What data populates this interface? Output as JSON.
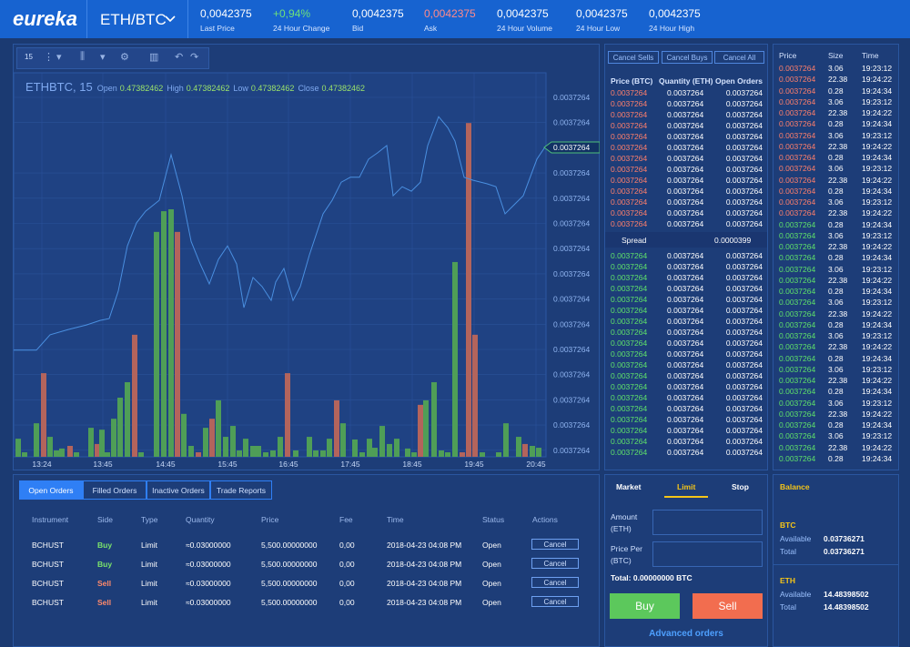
{
  "header": {
    "logo": "eureka",
    "pair": "ETH/BTC",
    "stats": [
      {
        "value": "0,0042375",
        "label": "Last Price"
      },
      {
        "value": "+0,94%",
        "label": "24 Hour Change"
      },
      {
        "value": "0,0042375",
        "label": "Bid"
      },
      {
        "value": "0,0042375",
        "label": "Ask"
      },
      {
        "value": "0,0042375",
        "label": "24 Hour Volume"
      },
      {
        "value": "0,0042375",
        "label": "24 Hour Low"
      },
      {
        "value": "0,0042375",
        "label": "24 Hour High"
      }
    ]
  },
  "chart": {
    "interval": "15",
    "symbol": "ETHBTC, 15",
    "ohlc": [
      {
        "label": "Open",
        "value": "0.47382462"
      },
      {
        "label": "High",
        "value": "0.47382462"
      },
      {
        "label": "Low",
        "value": "0.47382462"
      },
      {
        "label": "Close",
        "value": "0.47382462"
      }
    ],
    "price_labels": [
      "0.0037264",
      "0.0037264",
      "0.0037264",
      "0.0037264",
      "0.0037264",
      "0.0037264",
      "0.0037264",
      "0.0037264",
      "0.0037264",
      "0.0037264",
      "0.0037264",
      "0.0037264",
      "0.0037264",
      "0.0037264"
    ],
    "current_price": "0.0037264",
    "time_labels": [
      "13:24",
      "13:45",
      "14:45",
      "15:45",
      "16:45",
      "17:45",
      "18:45",
      "19:45",
      "20:45"
    ],
    "xlim": [
      0,
      585
    ],
    "ylim": [
      0,
      100
    ],
    "line_color": "#4a8fe0",
    "line_x": [
      0,
      25,
      40,
      60,
      80,
      95,
      105,
      115,
      125,
      135,
      145,
      160,
      173,
      185,
      195,
      205,
      215,
      225,
      235,
      245,
      253,
      263,
      273,
      283,
      288,
      297,
      307,
      315,
      325,
      340,
      350,
      360,
      370,
      380,
      390,
      400,
      410,
      417,
      427,
      437,
      447,
      455,
      467,
      477,
      485,
      495,
      505,
      520,
      530,
      540,
      550,
      560,
      575,
      585
    ],
    "line": [
      28.3,
      28.3,
      32.4,
      33.8,
      35.0,
      36.2,
      36.7,
      44.0,
      56.0,
      62.1,
      65.2,
      68.1,
      80.2,
      69.3,
      57.2,
      51.2,
      45.9,
      52.4,
      56.0,
      51.2,
      39.6,
      47.6,
      45.2,
      41.5,
      46.4,
      50.0,
      41.5,
      45.2,
      53.6,
      64.5,
      68.1,
      72.9,
      74.2,
      74.2,
      79.0,
      80.7,
      82.6,
      69.3,
      71.7,
      70.5,
      72.9,
      82.6,
      90.3,
      87.4,
      83.8,
      74.2,
      73.4,
      72.5,
      71.7,
      64.5,
      66.9,
      69.3,
      79.0,
      82.6
    ],
    "volume_x": [
      5,
      12,
      25,
      33,
      40,
      47,
      53,
      62,
      69,
      85,
      92,
      97,
      103,
      110,
      117,
      125,
      133,
      140,
      157,
      165,
      173,
      180,
      187,
      195,
      203,
      211,
      218,
      225,
      233,
      241,
      248,
      255,
      263,
      269,
      277,
      285,
      293,
      301,
      310,
      325,
      332,
      340,
      347,
      355,
      362,
      375,
      383,
      391,
      397,
      405,
      413,
      421,
      433,
      440,
      447,
      453,
      462,
      470,
      477,
      485,
      493,
      500,
      507,
      515,
      533,
      541,
      555,
      562,
      570,
      577
    ],
    "volume": [
      4.8,
      1.2,
      8.9,
      22.2,
      5.3,
      1.7,
      2.2,
      2.9,
      1.2,
      7.7,
      3.4,
      7.2,
      1.2,
      10.1,
      15.7,
      19.8,
      32.4,
      1.2,
      59.7,
      65.2,
      65.7,
      59.7,
      11.4,
      2.9,
      1.2,
      7.7,
      10.1,
      15.0,
      5.3,
      8.2,
      1.7,
      4.8,
      2.9,
      2.9,
      1.2,
      1.7,
      5.3,
      22.2,
      1.7,
      5.3,
      1.7,
      1.7,
      4.8,
      15.0,
      8.9,
      4.6,
      1.2,
      4.8,
      2.4,
      8.2,
      3.4,
      4.8,
      2.2,
      1.2,
      13.8,
      15.0,
      19.8,
      1.7,
      1.2,
      51.7,
      1.2,
      88.6,
      32.4,
      1.2,
      1.2,
      8.9,
      5.3,
      3.4,
      2.9,
      2.4
    ],
    "volume_colors": [
      "#4f9e57",
      "#4f9e57",
      "#4f9e57",
      "#b3645c",
      "#4f9e57",
      "#4f9e57",
      "#4f9e57",
      "#b3645c",
      "#4f9e57",
      "#4f9e57",
      "#b3645c",
      "#4f9e57",
      "#4f9e57",
      "#4f9e57",
      "#4f9e57",
      "#4f9e57",
      "#b3645c",
      "#4f9e57",
      "#4f9e57",
      "#4f9e57",
      "#4f9e57",
      "#b3645c",
      "#4f9e57",
      "#4f9e57",
      "#b3645c",
      "#4f9e57",
      "#b3645c",
      "#4f9e57",
      "#4f9e57",
      "#4f9e57",
      "#4f9e57",
      "#4f9e57",
      "#4f9e57",
      "#4f9e57",
      "#4f9e57",
      "#4f9e57",
      "#4f9e57",
      "#b3645c",
      "#4f9e57",
      "#4f9e57",
      "#4f9e57",
      "#4f9e57",
      "#4f9e57",
      "#b3645c",
      "#4f9e57",
      "#4f9e57",
      "#4f9e57",
      "#4f9e57",
      "#4f9e57",
      "#4f9e57",
      "#4f9e57",
      "#4f9e57",
      "#4f9e57",
      "#4f9e57",
      "#b3645c",
      "#4f9e57",
      "#4f9e57",
      "#4f9e57",
      "#4f9e57",
      "#4f9e57",
      "#b3645c",
      "#b3645c",
      "#b3645c",
      "#4f9e57",
      "#4f9e57",
      "#4f9e57",
      "#4f9e57",
      "#b3645c",
      "#4f9e57",
      "#4f9e57"
    ]
  },
  "orders": {
    "tabs": [
      "Open Orders",
      "Filled Orders",
      "Inactive Orders",
      "Trade Reports"
    ],
    "columns": [
      "Instrument",
      "Side",
      "Type",
      "Quantity",
      "Price",
      "Fee",
      "Time",
      "Status",
      "Actions"
    ],
    "rows": [
      [
        "BCHUST",
        "Buy",
        "Limit",
        "≈0.03000000",
        "5,500.00000000",
        "0,00",
        "2018-04-23 04:08 PM",
        "Open",
        "Cancel"
      ],
      [
        "BCHUST",
        "Buy",
        "Limit",
        "≈0.03000000",
        "5,500.00000000",
        "0,00",
        "2018-04-23 04:08 PM",
        "Open",
        "Cancel"
      ],
      [
        "BCHUST",
        "Sell",
        "Limit",
        "≈0.03000000",
        "5,500.00000000",
        "0,00",
        "2018-04-23 04:08 PM",
        "Open",
        "Cancel"
      ],
      [
        "BCHUST",
        "Sell",
        "Limit",
        "≈0.03000000",
        "5,500.00000000",
        "0,00",
        "2018-04-23 04:08 PM",
        "Open",
        "Cancel"
      ]
    ]
  },
  "orderbook": {
    "buttons": [
      "Cancel Sells",
      "Cancel Buys",
      "Cancel All"
    ],
    "columns": [
      "Price (BTC)",
      "Quantity (ETH)",
      "Open Orders"
    ],
    "sells": [
      [
        "0.0037264",
        "0.0037264",
        "0.0037264"
      ],
      [
        "0.0037264",
        "0.0037264",
        "0.0037264"
      ],
      [
        "0.0037264",
        "0.0037264",
        "0.0037264"
      ],
      [
        "0.0037264",
        "0.0037264",
        "0.0037264"
      ],
      [
        "0.0037264",
        "0.0037264",
        "0.0037264"
      ],
      [
        "0.0037264",
        "0.0037264",
        "0.0037264"
      ],
      [
        "0.0037264",
        "0.0037264",
        "0.0037264"
      ],
      [
        "0.0037264",
        "0.0037264",
        "0.0037264"
      ],
      [
        "0.0037264",
        "0.0037264",
        "0.0037264"
      ],
      [
        "0.0037264",
        "0.0037264",
        "0.0037264"
      ],
      [
        "0.0037264",
        "0.0037264",
        "0.0037264"
      ],
      [
        "0.0037264",
        "0.0037264",
        "0.0037264"
      ],
      [
        "0.0037264",
        "0.0037264",
        "0.0037264"
      ]
    ],
    "spread": {
      "label": "Spread",
      "value": "0.0000399"
    },
    "buys": [
      [
        "0.0037264",
        "0.0037264",
        "0.0037264"
      ],
      [
        "0.0037264",
        "0.0037264",
        "0.0037264"
      ],
      [
        "0.0037264",
        "0.0037264",
        "0.0037264"
      ],
      [
        "0.0037264",
        "0.0037264",
        "0.0037264"
      ],
      [
        "0.0037264",
        "0.0037264",
        "0.0037264"
      ],
      [
        "0.0037264",
        "0.0037264",
        "0.0037264"
      ],
      [
        "0.0037264",
        "0.0037264",
        "0.0037264"
      ],
      [
        "0.0037264",
        "0.0037264",
        "0.0037264"
      ],
      [
        "0.0037264",
        "0.0037264",
        "0.0037264"
      ],
      [
        "0.0037264",
        "0.0037264",
        "0.0037264"
      ],
      [
        "0.0037264",
        "0.0037264",
        "0.0037264"
      ],
      [
        "0.0037264",
        "0.0037264",
        "0.0037264"
      ],
      [
        "0.0037264",
        "0.0037264",
        "0.0037264"
      ],
      [
        "0.0037264",
        "0.0037264",
        "0.0037264"
      ],
      [
        "0.0037264",
        "0.0037264",
        "0.0037264"
      ],
      [
        "0.0037264",
        "0.0037264",
        "0.0037264"
      ],
      [
        "0.0037264",
        "0.0037264",
        "0.0037264"
      ],
      [
        "0.0037264",
        "0.0037264",
        "0.0037264"
      ],
      [
        "0.0037264",
        "0.0037264",
        "0.0037264"
      ]
    ]
  },
  "trades": {
    "columns": [
      "Price",
      "Size",
      "Time"
    ],
    "sells": [
      [
        "0.0037264",
        "3.06",
        "19:23:12"
      ],
      [
        "0.0037264",
        "22.38",
        "19:24:22"
      ],
      [
        "0.0037264",
        "0.28",
        "19:24:34"
      ],
      [
        "0.0037264",
        "3.06",
        "19:23:12"
      ],
      [
        "0.0037264",
        "22.38",
        "19:24:22"
      ],
      [
        "0.0037264",
        "0.28",
        "19:24:34"
      ],
      [
        "0.0037264",
        "3.06",
        "19:23:12"
      ],
      [
        "0.0037264",
        "22.38",
        "19:24:22"
      ],
      [
        "0.0037264",
        "0.28",
        "19:24:34"
      ],
      [
        "0.0037264",
        "3.06",
        "19:23:12"
      ],
      [
        "0.0037264",
        "22.38",
        "19:24:22"
      ],
      [
        "0.0037264",
        "0.28",
        "19:24:34"
      ],
      [
        "0.0037264",
        "3.06",
        "19:23:12"
      ],
      [
        "0.0037264",
        "22.38",
        "19:24:22"
      ]
    ],
    "buys": [
      [
        "0.0037264",
        "0.28",
        "19:24:34"
      ],
      [
        "0.0037264",
        "3.06",
        "19:23:12"
      ],
      [
        "0.0037264",
        "22.38",
        "19:24:22"
      ],
      [
        "0.0037264",
        "0.28",
        "19:24:34"
      ],
      [
        "0.0037264",
        "3.06",
        "19:23:12"
      ],
      [
        "0.0037264",
        "22.38",
        "19:24:22"
      ],
      [
        "0.0037264",
        "0.28",
        "19:24:34"
      ],
      [
        "0.0037264",
        "3.06",
        "19:23:12"
      ],
      [
        "0.0037264",
        "22.38",
        "19:24:22"
      ],
      [
        "0.0037264",
        "0.28",
        "19:24:34"
      ],
      [
        "0.0037264",
        "3.06",
        "19:23:12"
      ],
      [
        "0.0037264",
        "22.38",
        "19:24:22"
      ],
      [
        "0.0037264",
        "0.28",
        "19:24:34"
      ],
      [
        "0.0037264",
        "3.06",
        "19:23:12"
      ],
      [
        "0.0037264",
        "22.38",
        "19:24:22"
      ],
      [
        "0.0037264",
        "0.28",
        "19:24:34"
      ],
      [
        "0.0037264",
        "3.06",
        "19:23:12"
      ],
      [
        "0.0037264",
        "22.38",
        "19:24:22"
      ],
      [
        "0.0037264",
        "0.28",
        "19:24:34"
      ],
      [
        "0.0037264",
        "3.06",
        "19:23:12"
      ],
      [
        "0.0037264",
        "22.38",
        "19:24:22"
      ],
      [
        "0.0037264",
        "0.28",
        "19:24:34"
      ]
    ]
  },
  "form": {
    "tabs": [
      "Market",
      "Limit",
      "Stop"
    ],
    "amount_label": "Amount (ETH)",
    "price_label": "Price Per (BTC)",
    "total": "Total: 0.00000000 BTC",
    "buy": "Buy",
    "sell": "Sell",
    "advanced": "Advanced orders"
  },
  "balance": {
    "title": "Balance",
    "assets": [
      {
        "name": "BTC",
        "available_label": "Available",
        "available": "0.03736271",
        "total_label": "Total",
        "total": "0.03736271"
      },
      {
        "name": "ETH",
        "available_label": "Available",
        "available": "14.48398502",
        "total_label": "Total",
        "total": "14.48398502"
      }
    ]
  }
}
